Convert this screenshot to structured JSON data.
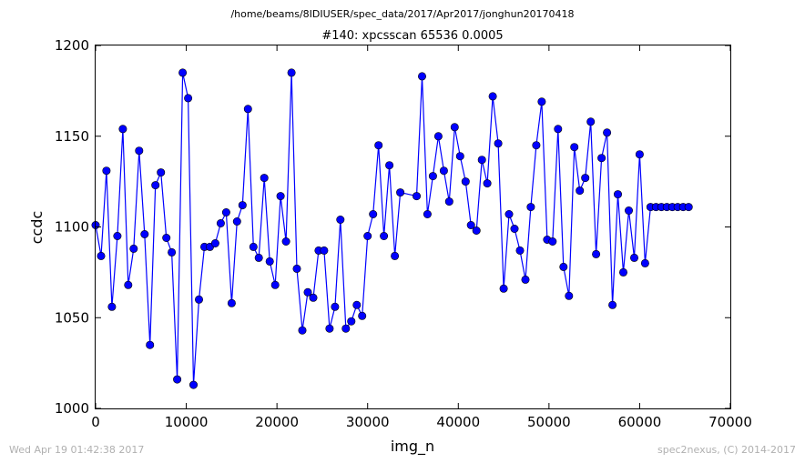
{
  "suptitle": "/home/beams/8IDIUSER/spec_data/2017/Apr2017/jonghun20170418",
  "footer": {
    "timestamp": "Wed Apr 19 01:42:38 2017",
    "credit": "spec2nexus, (C) 2014-2017"
  },
  "chart_data": {
    "type": "line",
    "title": "#140: xpcsscan 65536 0.0005",
    "xlabel": "img_n",
    "ylabel": "ccdc",
    "xlim": [
      0,
      70000
    ],
    "ylim": [
      1000,
      1200
    ],
    "xticks": [
      0,
      10000,
      20000,
      30000,
      40000,
      50000,
      60000,
      70000
    ],
    "yticks": [
      1000,
      1050,
      1100,
      1150,
      1200
    ],
    "grid": false,
    "line_color": "#0000ff",
    "marker": "circle",
    "series": [
      {
        "x": [
          0,
          600,
          1200,
          1800,
          2400,
          3000,
          3600,
          4200,
          4800,
          5400,
          6000,
          6600,
          7200,
          7800,
          8400,
          9000,
          9600,
          10200,
          10800,
          11400,
          12000,
          12600,
          13200,
          13800,
          14400,
          15000,
          15600,
          16200,
          16800,
          17400,
          18000,
          18600,
          19200,
          19800,
          20400,
          21000,
          21600,
          22200,
          22800,
          23400,
          24000,
          24600,
          25200,
          25800,
          26400,
          27000,
          27600,
          28200,
          28800,
          29400,
          30000,
          30600,
          31200,
          31800,
          32400,
          33000,
          33600,
          35400,
          36000,
          36600,
          37200,
          37800,
          38400,
          39000,
          39600,
          40200,
          40800,
          41400,
          42000,
          42600,
          43200,
          43800,
          44400,
          45000,
          45600,
          46200,
          46800,
          47400,
          48000,
          48600,
          49200,
          49800,
          50400,
          51000,
          51600,
          52200,
          52800,
          53400,
          54000,
          54600,
          55200,
          55800,
          56400,
          57000,
          57600,
          58200,
          58800,
          59400,
          60000,
          60600,
          61200,
          61800,
          62400,
          63000,
          63600,
          64200,
          64800,
          65400
        ],
        "y": [
          1101,
          1084,
          1131,
          1056,
          1095,
          1154,
          1068,
          1088,
          1142,
          1096,
          1035,
          1123,
          1130,
          1094,
          1086,
          1016,
          1185,
          1171,
          1013,
          1060,
          1089,
          1089,
          1091,
          1102,
          1108,
          1058,
          1103,
          1112,
          1165,
          1089,
          1083,
          1127,
          1081,
          1068,
          1117,
          1092,
          1185,
          1077,
          1043,
          1064,
          1061,
          1087,
          1087,
          1044,
          1056,
          1104,
          1044,
          1048,
          1057,
          1051,
          1095,
          1107,
          1145,
          1095,
          1134,
          1084,
          1119,
          1117,
          1183,
          1107,
          1128,
          1150,
          1131,
          1114,
          1155,
          1139,
          1125,
          1101,
          1098,
          1137,
          1124,
          1172,
          1146,
          1066,
          1107,
          1099,
          1087,
          1071,
          1111,
          1145,
          1169,
          1093,
          1092,
          1154,
          1078,
          1062,
          1144,
          1120,
          1127,
          1158,
          1085,
          1138,
          1152,
          1057,
          1118,
          1075,
          1109,
          1083,
          1140,
          1080,
          1111,
          1111,
          1111,
          1111,
          1111,
          1111,
          1111,
          1111
        ]
      }
    ]
  }
}
